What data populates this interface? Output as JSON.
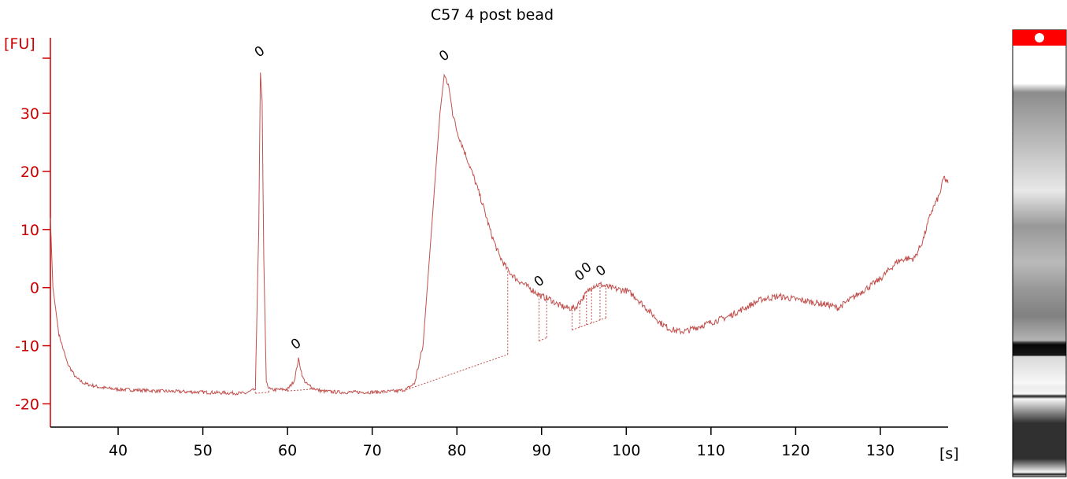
{
  "colors": {
    "axis": "#cc0000",
    "trace": "#c0504d",
    "gel_marker": "#ff0000",
    "text": "#000000"
  },
  "chart_data": {
    "type": "line",
    "title": "C57 4 post bead",
    "ylabel": "[FU]",
    "xlabel": "[s]",
    "xlim": [
      32,
      138
    ],
    "ylim": [
      -24,
      43
    ],
    "x_ticks": [
      40,
      50,
      60,
      70,
      80,
      90,
      100,
      110,
      120,
      130
    ],
    "y_ticks": [
      -20,
      -10,
      0,
      10,
      20,
      30
    ],
    "grid": false,
    "legend": "none",
    "series": [
      {
        "x": [
          32,
          32.3,
          33,
          34,
          35,
          36,
          38,
          40,
          45,
          50,
          55,
          56.2,
          56.6,
          56.8,
          57,
          57.2,
          57.5,
          58,
          60,
          60.8,
          61.3,
          61.8,
          62.2,
          63,
          64,
          66,
          70,
          73,
          74,
          75,
          76,
          77,
          78,
          78.5,
          79,
          79.5,
          80,
          81,
          82,
          83,
          84,
          85,
          86,
          87,
          88,
          89,
          90,
          91,
          92,
          93,
          94,
          95,
          96,
          97,
          98,
          99,
          100,
          101,
          102,
          103,
          104,
          105,
          106,
          107,
          108,
          110,
          112,
          114,
          116,
          118,
          120,
          122,
          124,
          125,
          127,
          129,
          130,
          131,
          132,
          133,
          134,
          135,
          136,
          137,
          137.5,
          138
        ],
        "y": [
          12,
          0,
          -8,
          -13,
          -15.5,
          -16.5,
          -17.2,
          -17.5,
          -17.8,
          -18,
          -18.2,
          -17.5,
          10,
          37,
          32,
          5,
          -16.5,
          -17.6,
          -17.5,
          -16,
          -12.3,
          -15.5,
          -16.5,
          -17.3,
          -17.8,
          -18,
          -18,
          -17.8,
          -17.5,
          -16.5,
          -10,
          10,
          30,
          36.5,
          35,
          30,
          27,
          23,
          19,
          14.5,
          9.5,
          5.5,
          3,
          1.5,
          0.5,
          -0.5,
          -1.5,
          -2,
          -3,
          -3.5,
          -3.5,
          -1.5,
          0.3,
          0.5,
          0,
          -0.3,
          -0.5,
          -1.5,
          -3,
          -4.5,
          -6,
          -7,
          -7.5,
          -7.5,
          -7,
          -6,
          -5,
          -3.5,
          -2,
          -1.5,
          -2,
          -2.5,
          -3,
          -3.5,
          -1.5,
          0.5,
          1.5,
          3,
          4.5,
          5,
          5,
          8,
          13,
          16,
          19,
          18
        ]
      }
    ],
    "peak_labels": [
      {
        "x": 57.0,
        "y": 40,
        "text": "0"
      },
      {
        "x": 61.3,
        "y": -10.3,
        "text": "0"
      },
      {
        "x": 78.8,
        "y": 39.3,
        "text": "0"
      },
      {
        "x": 90.0,
        "y": 0.5,
        "text": "0"
      },
      {
        "x": 94.8,
        "y": 1.5,
        "text": "0"
      },
      {
        "x": 95.6,
        "y": 2.8,
        "text": "0"
      },
      {
        "x": 97.3,
        "y": 2.3,
        "text": "0"
      }
    ],
    "baseline_segments": [
      {
        "x": [
          56.2,
          57.8
        ],
        "y": [
          -18.2,
          -18.0
        ]
      },
      {
        "x": [
          60.0,
          62.7
        ],
        "y": [
          -17.8,
          -17.5
        ]
      },
      {
        "x": [
          74.0,
          86.0
        ],
        "y": [
          -17.6,
          -11.5
        ]
      },
      {
        "x": [
          89.7,
          90.6
        ],
        "y": [
          -9.2,
          -8.6
        ]
      },
      {
        "x": [
          93.6,
          97.6
        ],
        "y": [
          -7.3,
          -5.2
        ]
      }
    ],
    "peak_bounds": [
      {
        "x": 56.2,
        "y1": -18.2,
        "y2": -17.5
      },
      {
        "x": 57.8,
        "y1": -18.0,
        "y2": -17.6
      },
      {
        "x": 60.0,
        "y1": -17.8,
        "y2": -17.5
      },
      {
        "x": 62.7,
        "y1": -17.5,
        "y2": -16.5
      },
      {
        "x": 86.0,
        "y1": -11.5,
        "y2": 3.0
      },
      {
        "x": 89.7,
        "y1": -9.2,
        "y2": -1.0
      },
      {
        "x": 90.6,
        "y1": -8.6,
        "y2": -1.8
      },
      {
        "x": 93.6,
        "y1": -7.3,
        "y2": -3.5
      },
      {
        "x": 94.5,
        "y1": -6.8,
        "y2": -2.2
      },
      {
        "x": 95.3,
        "y1": -6.4,
        "y2": -0.8
      },
      {
        "x": 95.9,
        "y1": -6.1,
        "y2": 0.2
      },
      {
        "x": 96.9,
        "y1": -5.6,
        "y2": 0.5
      },
      {
        "x": 97.6,
        "y1": -5.2,
        "y2": 0.3
      }
    ],
    "gel_lane": {
      "bands": [
        {
          "pos": 0.36,
          "intensity": 0.1
        },
        {
          "pos": 0.44,
          "intensity": 0.45
        },
        {
          "pos": 0.52,
          "intensity": 0.3
        },
        {
          "pos": 0.58,
          "intensity": 0.45
        },
        {
          "pos": 0.64,
          "intensity": 0.55
        },
        {
          "pos": 0.7,
          "intensity": 0.85
        },
        {
          "pos": 0.73,
          "intensity": 1.0
        },
        {
          "pos": 0.88,
          "intensity": 0.9
        },
        {
          "pos": 0.96,
          "intensity": 0.9
        }
      ]
    }
  }
}
